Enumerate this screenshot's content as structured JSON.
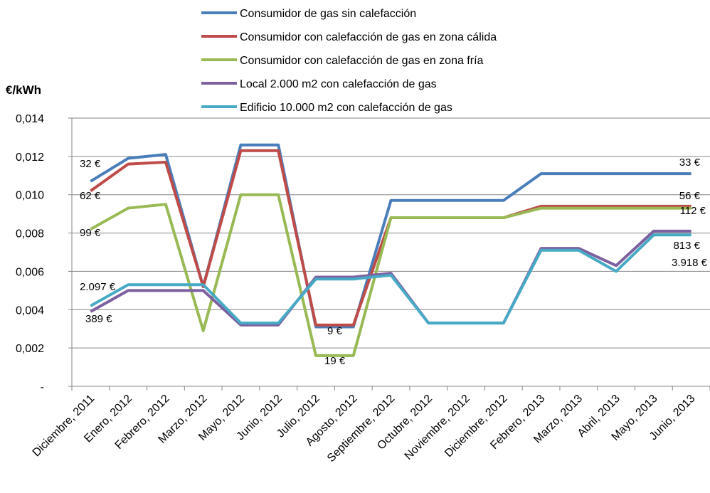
{
  "chart_data": {
    "type": "line",
    "y_label": "€/kWh",
    "categories": [
      "Diciembre, 2011",
      "Enero, 2012",
      "Febrero, 2012",
      "Marzo, 2012",
      "Mayo, 2012",
      "Junio, 2012",
      "Julio, 2012",
      "Agosto, 2012",
      "Septiembre, 2012",
      "Octubre, 2012",
      "Noviembre, 2012",
      "Diciembre, 2012",
      "Febrero, 2013",
      "Marzo, 2013",
      "Abril, 2013",
      "Mayo, 2013",
      "Junio, 2013"
    ],
    "series": [
      {
        "name": "Consumidor de gas sin calefacción",
        "color": "#4a7ebb",
        "values": [
          0.0107,
          0.0119,
          0.0121,
          0.0052,
          0.0126,
          0.0126,
          0.0031,
          0.0031,
          0.0097,
          0.0097,
          0.0097,
          0.0097,
          0.0111,
          0.0111,
          0.0111,
          0.0111,
          0.0111
        ]
      },
      {
        "name": "Consumidor con calefacción de gas en zona cálida",
        "color": "#be4b48",
        "values": [
          0.0102,
          0.0116,
          0.0117,
          0.0052,
          0.0123,
          0.0123,
          0.0032,
          0.0032,
          0.0088,
          0.0088,
          0.0088,
          0.0088,
          0.0094,
          0.0094,
          0.0094,
          0.0094,
          0.0094
        ]
      },
      {
        "name": "Consumidor con calefacción de gas en zona fría",
        "color": "#98b954",
        "values": [
          0.0082,
          0.0093,
          0.0095,
          0.0029,
          0.01,
          0.01,
          0.0016,
          0.0016,
          0.0088,
          0.0088,
          0.0088,
          0.0088,
          0.0093,
          0.0093,
          0.0093,
          0.0093,
          0.0093
        ]
      },
      {
        "name": "Local 2.000 m2 con calefacción de gas",
        "color": "#7d60a0",
        "values": [
          0.0039,
          0.005,
          0.005,
          0.005,
          0.0032,
          0.0032,
          0.0057,
          0.0057,
          0.0059,
          0.0033,
          0.0033,
          0.0033,
          0.0072,
          0.0072,
          0.0063,
          0.0081,
          0.0081
        ]
      },
      {
        "name": "Edificio 10.000 m2 con calefacción de gas",
        "color": "#46aac5",
        "values": [
          0.0042,
          0.0053,
          0.0053,
          0.0053,
          0.0033,
          0.0033,
          0.0056,
          0.0056,
          0.0058,
          0.0033,
          0.0033,
          0.0033,
          0.0071,
          0.0071,
          0.006,
          0.0079,
          0.0079
        ]
      }
    ],
    "ylim": [
      0,
      0.014
    ],
    "yticks": [
      {
        "value": 0,
        "label": "-"
      },
      {
        "value": 0.002,
        "label": "0,002"
      },
      {
        "value": 0.004,
        "label": "0,004"
      },
      {
        "value": 0.006,
        "label": "0,006"
      },
      {
        "value": 0.008,
        "label": "0,008"
      },
      {
        "value": 0.01,
        "label": "0,010"
      },
      {
        "value": 0.012,
        "label": "0,012"
      },
      {
        "value": 0.014,
        "label": "0,014"
      }
    ],
    "grid": true,
    "annotations": [
      "32 €",
      "62 €",
      "99 €",
      "2.097 €",
      "389 €",
      "9 €",
      "19 €",
      "33 €",
      "56 €",
      "112 €",
      "813 €",
      "3.918 €"
    ]
  }
}
